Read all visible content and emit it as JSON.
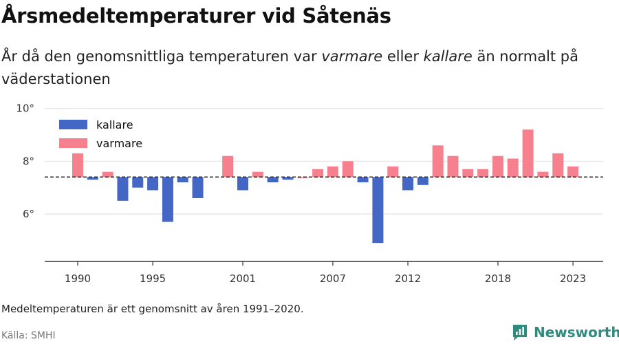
{
  "title": "Årsmedeltemperaturer vid Såtenäs",
  "subtitle": {
    "part1": "År då den genomsnittliga temperaturen var ",
    "warm_word": "varmare",
    "part2": " eller ",
    "cold_word": "kallare",
    "part3": " än normalt på väderstationen"
  },
  "footnote": "Medeltemperaturen är ett genomsnitt av åren 1991–2020.",
  "source": "Källa: SMHI",
  "brand": "Newsworthy",
  "colors": {
    "kallare": "#4466c4",
    "varmare": "#f6808e",
    "baseline": "#333333",
    "grid": "#e2e2e2",
    "brand": "#2e8b7e"
  },
  "chart_data": {
    "type": "bar",
    "x": [
      1990,
      1991,
      1992,
      1993,
      1994,
      1995,
      1996,
      1997,
      1998,
      1999,
      2000,
      2001,
      2002,
      2003,
      2004,
      2005,
      2006,
      2007,
      2008,
      2009,
      2010,
      2011,
      2012,
      2013,
      2014,
      2015,
      2016,
      2017,
      2018,
      2019,
      2020,
      2021,
      2022,
      2023
    ],
    "values": [
      8.3,
      7.3,
      7.6,
      6.5,
      7.0,
      6.9,
      5.7,
      7.2,
      6.6,
      null,
      8.2,
      6.9,
      7.6,
      7.2,
      7.3,
      7.4,
      7.7,
      7.8,
      8.0,
      7.2,
      4.9,
      7.8,
      6.9,
      7.1,
      8.6,
      8.2,
      7.7,
      7.7,
      8.2,
      8.1,
      9.2,
      7.6,
      8.3,
      7.8
    ],
    "baseline": 7.4,
    "ylim": [
      4.2,
      10.2
    ],
    "yticks": [
      6,
      8,
      10
    ],
    "ytick_labels": [
      "6°",
      "8°",
      "10°"
    ],
    "xticks": [
      1990,
      1995,
      2001,
      2007,
      2012,
      2018,
      2023
    ],
    "xtick_labels": [
      "1990",
      "1995",
      "2001",
      "2007",
      "2012",
      "2018",
      "2023"
    ],
    "legend": [
      {
        "key": "kallare",
        "label": "kallare"
      },
      {
        "key": "varmare",
        "label": "varmare"
      }
    ],
    "legend_position": "top-left",
    "grid": true
  }
}
